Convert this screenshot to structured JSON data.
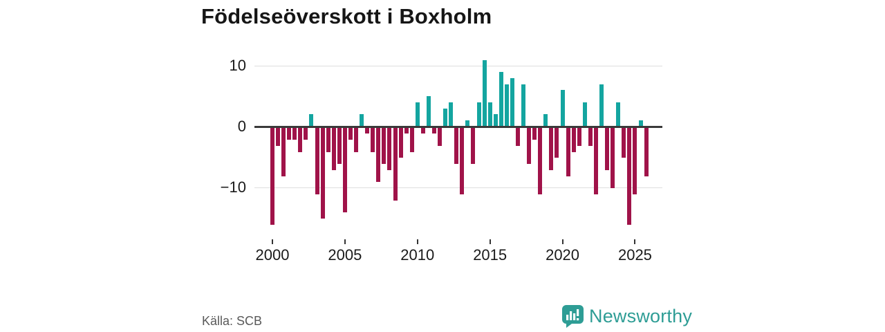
{
  "title": "Födelseöverskott i Boxholm",
  "source": "Källa: SCB",
  "branding": {
    "name": "Newsworthy",
    "logo_icon": "bar-chart-speech-bubble-icon",
    "color": "#2e9d95"
  },
  "chart_data": {
    "type": "bar",
    "title": "Födelseöverskott i Boxholm",
    "grid": "horizontal",
    "legend": "none",
    "ylim": [
      -17.5,
      12.5
    ],
    "y_ticks": [
      {
        "value": 10,
        "label": "10"
      },
      {
        "value": 0,
        "label": "0"
      },
      {
        "value": -10,
        "label": "−10"
      }
    ],
    "x_tick_labels": [
      "2000",
      "2005",
      "2010",
      "2015",
      "2020",
      "2025"
    ],
    "x_tick_bar_indices": [
      0,
      13,
      26,
      39,
      52,
      65
    ],
    "colors": {
      "positive": "#14a5a0",
      "negative": "#a01349",
      "baseline": "#3a3a3a",
      "gridline": "#dedede"
    },
    "values": [
      -16,
      -3,
      -8,
      -2,
      -2,
      -4,
      -2,
      2,
      -11,
      -15,
      -4,
      -7,
      -6,
      -14,
      -2,
      -4,
      2,
      -1,
      -4,
      -9,
      -6,
      -7,
      -12,
      -5,
      -1,
      -4,
      4,
      -1,
      5,
      -1,
      -3,
      3,
      4,
      -6,
      -11,
      1,
      -6,
      4,
      11,
      4,
      2,
      9,
      7,
      8,
      -3,
      7,
      -6,
      -2,
      -11,
      2,
      -7,
      -5,
      6,
      -8,
      -4,
      -3,
      4,
      -3,
      -11,
      7,
      -7,
      -10,
      4,
      -5,
      -16,
      -11,
      1,
      -8
    ]
  }
}
